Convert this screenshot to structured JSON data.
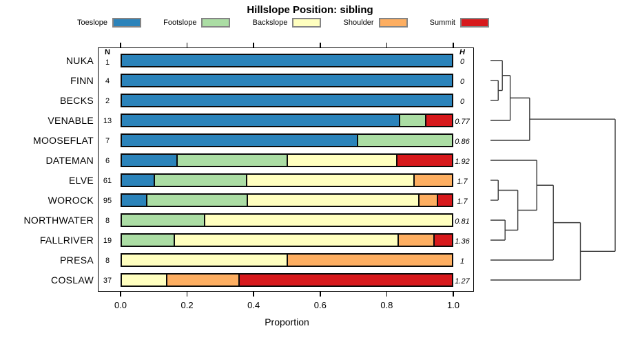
{
  "title": "Hillslope Position: sibling",
  "legend": {
    "items": [
      {
        "label": "Toeslope",
        "color": "#2b83ba"
      },
      {
        "label": "Footslope",
        "color": "#abdda4"
      },
      {
        "label": "Backslope",
        "color": "#ffffbf"
      },
      {
        "label": "Shoulder",
        "color": "#fdae61"
      },
      {
        "label": "Summit",
        "color": "#d7191c"
      }
    ]
  },
  "columns": {
    "n_header": "N",
    "h_header": "H"
  },
  "axis": {
    "label": "Proportion",
    "tick_labels": [
      "0.0",
      "0.2",
      "0.4",
      "0.6",
      "0.8",
      "1.0"
    ],
    "tick_values": [
      0,
      0.2,
      0.4,
      0.6,
      0.8,
      1.0
    ],
    "range": [
      0,
      1
    ]
  },
  "chart_data": {
    "type": "bar",
    "orientation": "horizontal",
    "stacked": true,
    "title": "Hillslope Position: sibling",
    "xlabel": "Proportion",
    "xlim": [
      0,
      1
    ],
    "categories": [
      "Toeslope",
      "Footslope",
      "Backslope",
      "Shoulder",
      "Summit"
    ],
    "rows": [
      {
        "label": "NUKA",
        "n": "1",
        "h": "0",
        "segments": [
          {
            "cat": "Toeslope",
            "value": 1.0
          }
        ]
      },
      {
        "label": "FINN",
        "n": "4",
        "h": "0",
        "segments": [
          {
            "cat": "Toeslope",
            "value": 1.0
          }
        ]
      },
      {
        "label": "BECKS",
        "n": "2",
        "h": "0",
        "segments": [
          {
            "cat": "Toeslope",
            "value": 1.0
          }
        ]
      },
      {
        "label": "VENABLE",
        "n": "13",
        "h": "0.77",
        "segments": [
          {
            "cat": "Toeslope",
            "value": 0.846
          },
          {
            "cat": "Footslope",
            "value": 0.077
          },
          {
            "cat": "Summit",
            "value": 0.077
          }
        ]
      },
      {
        "label": "MOOSEFLAT",
        "n": "7",
        "h": "0.86",
        "segments": [
          {
            "cat": "Toeslope",
            "value": 0.714
          },
          {
            "cat": "Footslope",
            "value": 0.286
          }
        ]
      },
      {
        "label": "DATEMAN",
        "n": "6",
        "h": "1.92",
        "segments": [
          {
            "cat": "Toeslope",
            "value": 0.167
          },
          {
            "cat": "Footslope",
            "value": 0.333
          },
          {
            "cat": "Backslope",
            "value": 0.333
          },
          {
            "cat": "Summit",
            "value": 0.167
          }
        ]
      },
      {
        "label": "ELVE",
        "n": "61",
        "h": "1.7",
        "segments": [
          {
            "cat": "Toeslope",
            "value": 0.098
          },
          {
            "cat": "Footslope",
            "value": 0.279
          },
          {
            "cat": "Backslope",
            "value": 0.508
          },
          {
            "cat": "Shoulder",
            "value": 0.115
          }
        ]
      },
      {
        "label": "WOROCK",
        "n": "95",
        "h": "1.7",
        "segments": [
          {
            "cat": "Toeslope",
            "value": 0.074
          },
          {
            "cat": "Footslope",
            "value": 0.305
          },
          {
            "cat": "Backslope",
            "value": 0.526
          },
          {
            "cat": "Shoulder",
            "value": 0.053
          },
          {
            "cat": "Summit",
            "value": 0.042
          }
        ]
      },
      {
        "label": "NORTHWATER",
        "n": "8",
        "h": "0.81",
        "segments": [
          {
            "cat": "Footslope",
            "value": 0.25
          },
          {
            "cat": "Backslope",
            "value": 0.75
          }
        ]
      },
      {
        "label": "FALLRIVER",
        "n": "19",
        "h": "1.36",
        "segments": [
          {
            "cat": "Footslope",
            "value": 0.158
          },
          {
            "cat": "Backslope",
            "value": 0.684
          },
          {
            "cat": "Shoulder",
            "value": 0.105
          },
          {
            "cat": "Summit",
            "value": 0.053
          }
        ]
      },
      {
        "label": "PRESA",
        "n": "8",
        "h": "1",
        "segments": [
          {
            "cat": "Backslope",
            "value": 0.5
          },
          {
            "cat": "Shoulder",
            "value": 0.5
          }
        ]
      },
      {
        "label": "COSLAW",
        "n": "37",
        "h": "1.27",
        "segments": [
          {
            "cat": "Backslope",
            "value": 0.135
          },
          {
            "cat": "Shoulder",
            "value": 0.216
          },
          {
            "cat": "Summit",
            "value": 0.649
          }
        ]
      }
    ]
  },
  "dendrogram": {
    "leaves": [
      "NUKA",
      "FINN",
      "BECKS",
      "VENABLE",
      "MOOSEFLAT",
      "DATEMAN",
      "ELVE",
      "WOROCK",
      "NORTHWATER",
      "FALLRIVER",
      "PRESA",
      "COSLAW"
    ],
    "merges": [
      {
        "id": "M1",
        "a": "L1",
        "b": "L2",
        "h": 0.062
      },
      {
        "id": "M2",
        "a": "L0",
        "b": "M1",
        "h": 0.095
      },
      {
        "id": "M3",
        "a": "M2",
        "b": "L3",
        "h": 0.158
      },
      {
        "id": "M4",
        "a": "M3",
        "b": "L4",
        "h": 0.314
      },
      {
        "id": "M5",
        "a": "L6",
        "b": "L7",
        "h": 0.062
      },
      {
        "id": "M6",
        "a": "L8",
        "b": "L9",
        "h": 0.117
      },
      {
        "id": "M7",
        "a": "M5",
        "b": "M6",
        "h": 0.219
      },
      {
        "id": "M8",
        "a": "L5",
        "b": "M7",
        "h": 0.371
      },
      {
        "id": "M9",
        "a": "M8",
        "b": "L10",
        "h": 0.504
      },
      {
        "id": "M10",
        "a": "M9",
        "b": "L11",
        "h": 0.721
      },
      {
        "id": "M11",
        "a": "M4",
        "b": "M10",
        "h": 1.0
      }
    ]
  }
}
